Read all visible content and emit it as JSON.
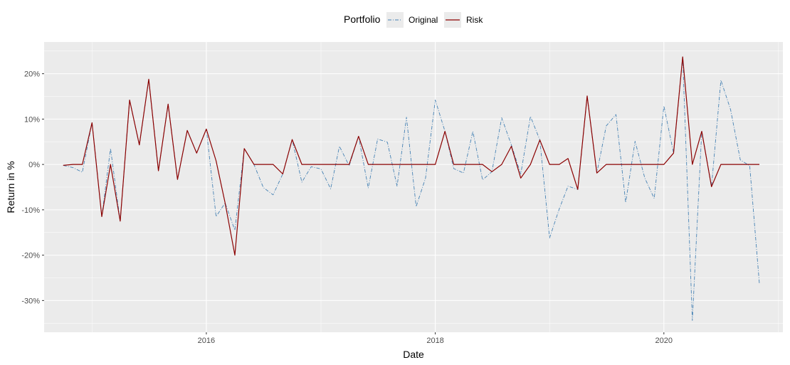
{
  "chart_data": {
    "type": "line",
    "xlabel": "Date",
    "ylabel": "Return in %",
    "legend": {
      "title": "Portfolio",
      "position": "top"
    },
    "grid": true,
    "x_ticks": [
      "2016",
      "2018",
      "2020"
    ],
    "y_ticks": [
      {
        "value": 20,
        "label": "20%"
      },
      {
        "value": 10,
        "label": "10%"
      },
      {
        "value": 0,
        "label": "0%"
      },
      {
        "value": -10,
        "label": "-10%"
      },
      {
        "value": -20,
        "label": "-20%"
      },
      {
        "value": -30,
        "label": "-30%"
      }
    ],
    "xlim": [
      "2014-08-01",
      "2021-01-15"
    ],
    "ylim": [
      -37,
      27
    ],
    "colors": {
      "Original": "#4682b4",
      "Risk": "#8b0000",
      "panel": "#ebebeb",
      "grid": "#ffffff"
    },
    "x": [
      "2014-10-01",
      "2014-11-01",
      "2014-12-01",
      "2015-01-01",
      "2015-02-01",
      "2015-03-01",
      "2015-04-01",
      "2015-05-01",
      "2015-06-01",
      "2015-07-01",
      "2015-08-01",
      "2015-09-01",
      "2015-10-01",
      "2015-11-01",
      "2015-12-01",
      "2016-01-01",
      "2016-02-01",
      "2016-03-01",
      "2016-04-01",
      "2016-05-01",
      "2016-06-01",
      "2016-07-01",
      "2016-08-01",
      "2016-09-01",
      "2016-10-01",
      "2016-11-01",
      "2016-12-01",
      "2017-01-01",
      "2017-02-01",
      "2017-03-01",
      "2017-04-01",
      "2017-05-01",
      "2017-06-01",
      "2017-07-01",
      "2017-08-01",
      "2017-09-01",
      "2017-10-01",
      "2017-11-01",
      "2017-12-01",
      "2018-01-01",
      "2018-02-01",
      "2018-03-01",
      "2018-04-01",
      "2018-05-01",
      "2018-06-01",
      "2018-07-01",
      "2018-08-01",
      "2018-09-01",
      "2018-10-01",
      "2018-11-01",
      "2018-12-01",
      "2019-01-01",
      "2019-02-01",
      "2019-03-01",
      "2019-04-01",
      "2019-05-01",
      "2019-06-01",
      "2019-07-01",
      "2019-08-01",
      "2019-09-01",
      "2019-10-01",
      "2019-11-01",
      "2019-12-01",
      "2020-01-01",
      "2020-02-01",
      "2020-03-01",
      "2020-04-01",
      "2020-05-01",
      "2020-06-01",
      "2020-07-01",
      "2020-08-01",
      "2020-09-01",
      "2020-10-01",
      "2020-11-01"
    ],
    "series": [
      {
        "name": "Original",
        "style": "dashed",
        "values": [
          -0.2,
          -0.7,
          -1.7,
          9.2,
          -11.5,
          3.5,
          -12.5,
          14.2,
          4.3,
          18.8,
          -1.4,
          13.3,
          -3.3,
          7.5,
          2.5,
          7.8,
          -11.5,
          -8.5,
          -14.5,
          3.5,
          0,
          -5.1,
          -6.7,
          -2.1,
          5.5,
          -3.9,
          -0.5,
          -1.0,
          -5.4,
          4.0,
          -0.3,
          6.2,
          -5.2,
          5.6,
          4.9,
          -4.8,
          10.4,
          -9.3,
          -3.0,
          14.2,
          7.3,
          -0.9,
          -1.9,
          7.3,
          -3.4,
          -1.6,
          10.3,
          4.3,
          -2.1,
          10.6,
          5.4,
          -16.2,
          -9.8,
          -4.8,
          -5.5,
          15.1,
          -1.9,
          8.5,
          11.0,
          -8.4,
          5.1,
          -3.0,
          -7.5,
          12.9,
          2.5,
          23.7,
          -34.4,
          7.3,
          -4.9,
          18.6,
          12.1,
          1.0,
          -0.3,
          -26.3
        ]
      },
      {
        "name": "Risk",
        "style": "solid",
        "values": [
          -0.2,
          0,
          0,
          9.2,
          -11.5,
          0,
          -12.5,
          14.2,
          4.3,
          18.8,
          -1.4,
          13.3,
          -3.3,
          7.5,
          2.5,
          7.8,
          0.8,
          -8.5,
          -20.0,
          3.5,
          0,
          0,
          0,
          -2.1,
          5.5,
          0,
          0,
          0,
          0,
          0,
          0,
          6.2,
          0,
          0,
          0,
          0,
          0,
          0,
          0,
          0,
          7.3,
          0,
          0,
          0,
          0,
          -1.6,
          0,
          4.0,
          -3.0,
          0,
          5.4,
          0,
          0,
          1.3,
          -5.5,
          15.1,
          -1.9,
          0,
          0,
          0,
          0,
          0,
          0,
          0,
          2.5,
          23.7,
          0,
          7.3,
          -4.9,
          0,
          0,
          0,
          0,
          0
        ]
      }
    ]
  }
}
